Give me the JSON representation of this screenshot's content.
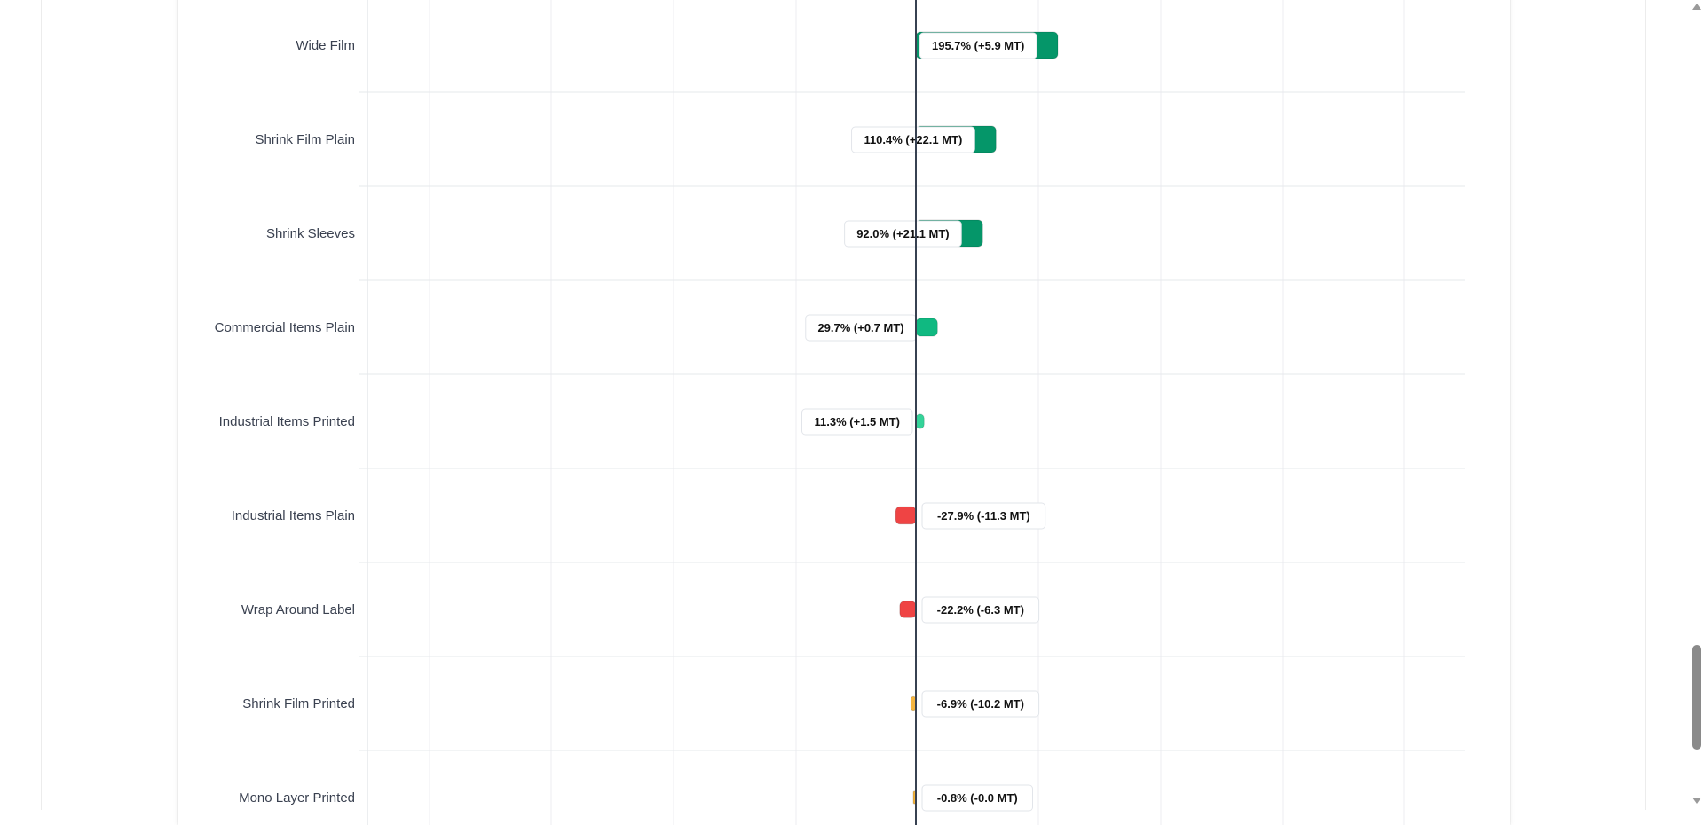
{
  "chart_data": {
    "type": "bar",
    "orientation": "horizontal",
    "categories": [
      "Wide Film",
      "Shrink Film Plain",
      "Shrink Sleeves",
      "Commercial Items Plain",
      "Industrial Items Printed",
      "Industrial Items Plain",
      "Wrap Around Label",
      "Shrink Film Printed",
      "Mono Layer Printed"
    ],
    "values": [
      195.7,
      110.4,
      92.0,
      29.7,
      11.3,
      -27.9,
      -22.2,
      -6.9,
      -0.8
    ],
    "labels": [
      "195.7% (+5.9 MT)",
      "110.4% (+22.1 MT)",
      "92.0% (+21.1 MT)",
      "29.7% (+0.7 MT)",
      "11.3% (+1.5 MT)",
      "-27.9% (-11.3 MT)",
      "-22.2% (-6.3 MT)",
      "-6.9% (-10.2 MT)",
      "-0.8% (-0.0 MT)"
    ],
    "colors": [
      "#059669",
      "#059669",
      "#059669",
      "#10b981",
      "#34d399",
      "#ef4444",
      "#ef4444",
      "#f5b53f",
      "#f5b53f"
    ],
    "zero_line_color": "#374151",
    "grid": true,
    "xlim": [
      -400,
      400
    ]
  }
}
